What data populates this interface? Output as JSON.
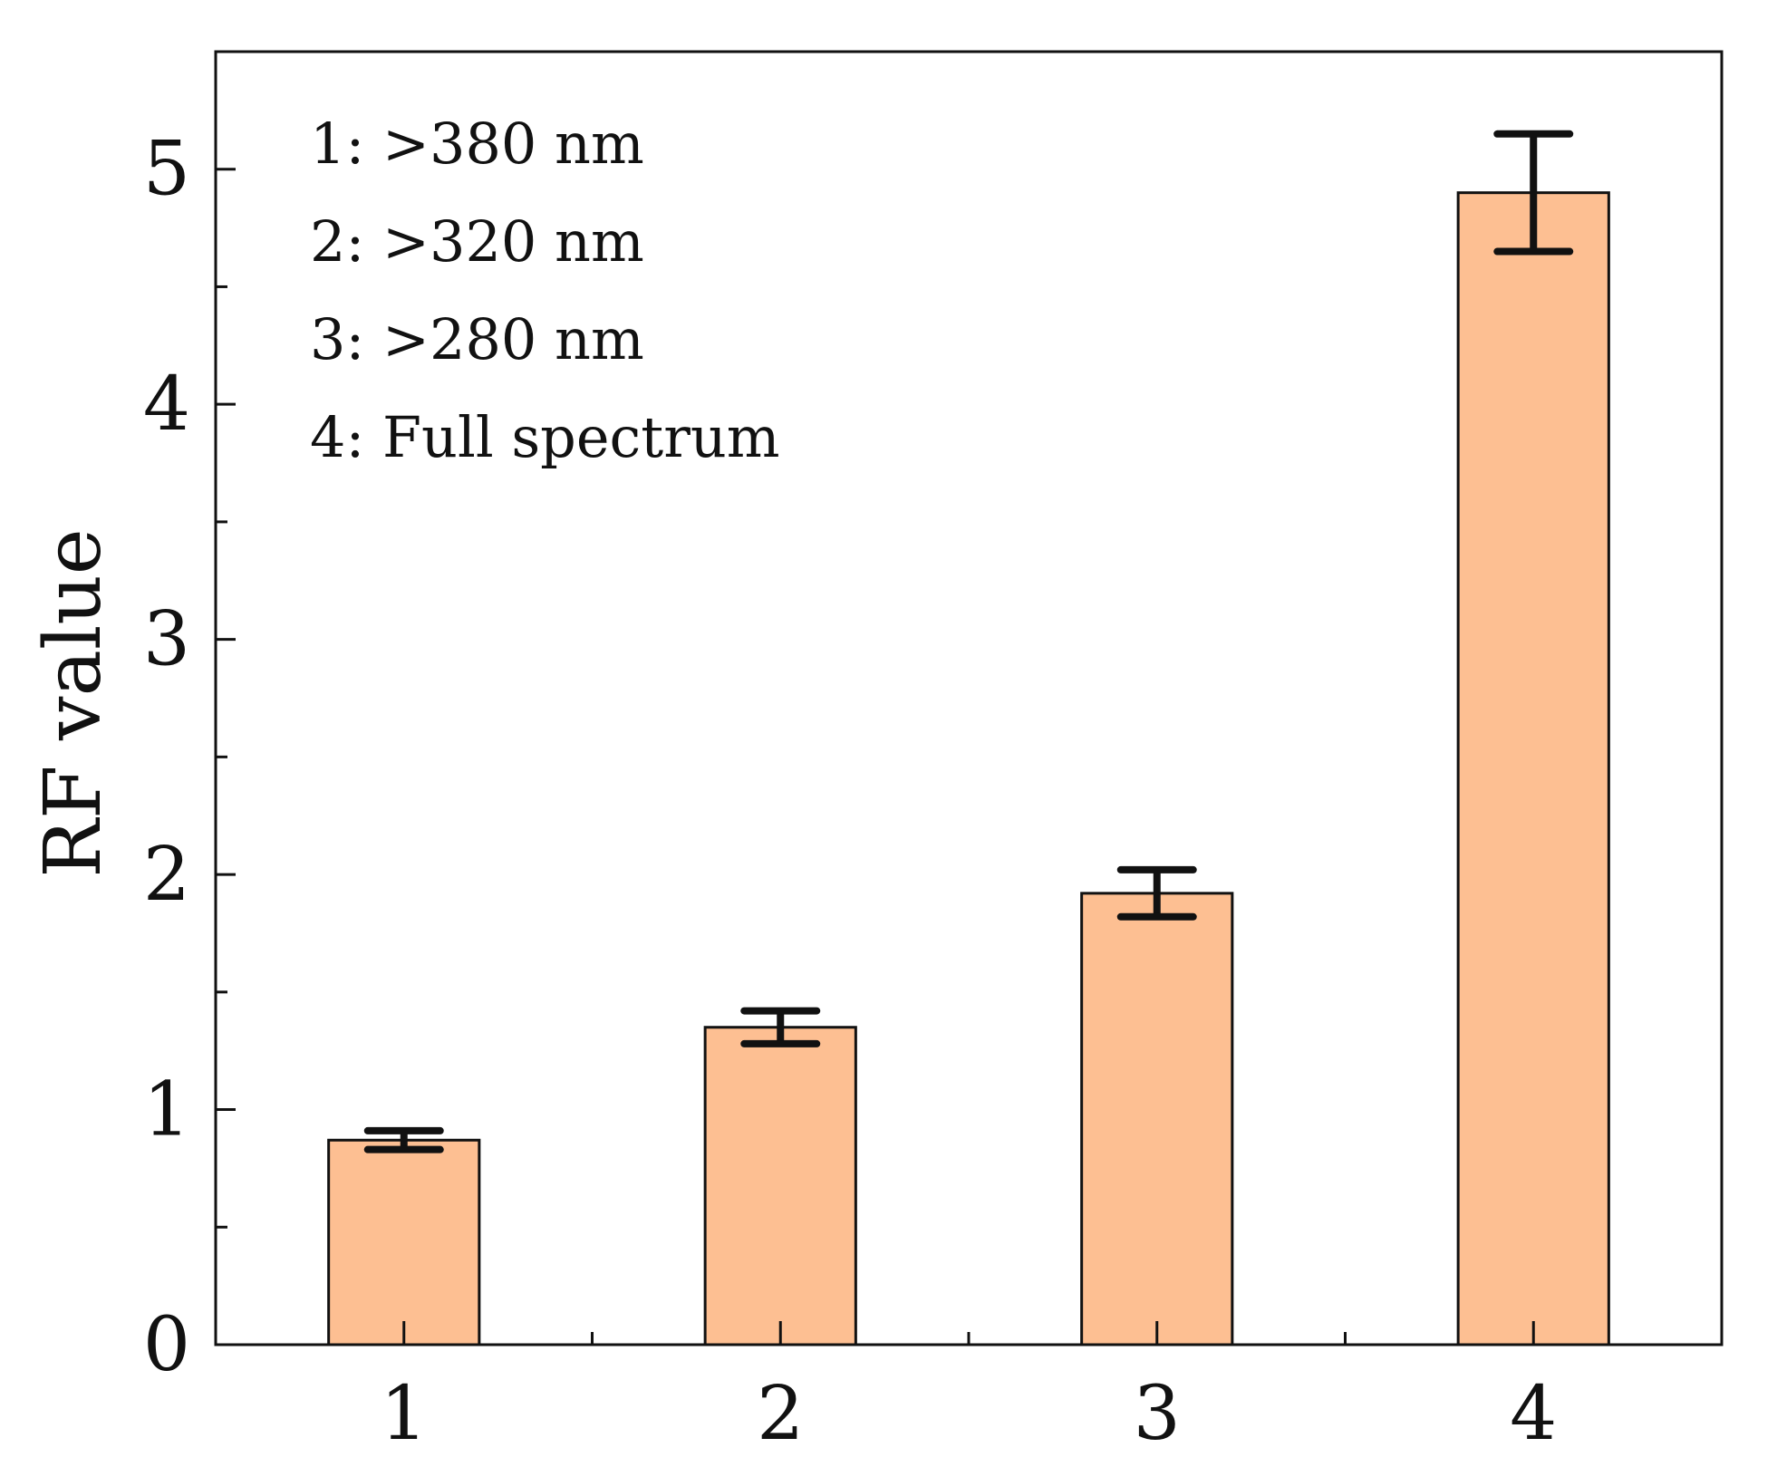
{
  "chart_data": {
    "type": "bar",
    "categories": [
      "1",
      "2",
      "3",
      "4"
    ],
    "values": [
      0.87,
      1.35,
      1.92,
      4.9
    ],
    "error": [
      0.04,
      0.07,
      0.1,
      0.25
    ],
    "title": "",
    "xlabel": "",
    "ylabel": "RF value",
    "ylim": [
      0,
      5.5
    ],
    "yticks": [
      0,
      1,
      2,
      3,
      4,
      5
    ],
    "ytick_labels": [
      "0",
      "1",
      "2",
      "3",
      "4",
      "5"
    ],
    "bar_color": "#FDBF92",
    "edge_color": "#111111",
    "annotations": [
      "1: >380 nm",
      "2: >320 nm",
      "3: >280 nm",
      "4: Full spectrum"
    ],
    "annotation_placement": "top-left",
    "grid": false
  }
}
